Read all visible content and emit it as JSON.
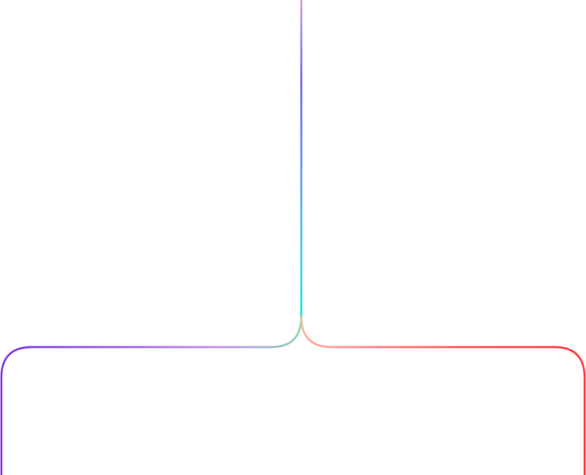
{
  "diagram": {
    "type": "branching-connector",
    "branches": [
      {
        "name": "trunk",
        "colors": [
          "#c7a3c7",
          "#6a5cff",
          "#5b8bff",
          "#38c7e8",
          "#00e5d8"
        ]
      },
      {
        "name": "left",
        "colors": [
          "#7be0a0",
          "#c48af0",
          "#9a5ce6",
          "#7c3ae0",
          "#8a2be2"
        ]
      },
      {
        "name": "right",
        "colors": [
          "#ffb3a8",
          "#ff7a7a",
          "#ff4a4a",
          "#ff3838",
          "#ff3030"
        ]
      }
    ]
  }
}
